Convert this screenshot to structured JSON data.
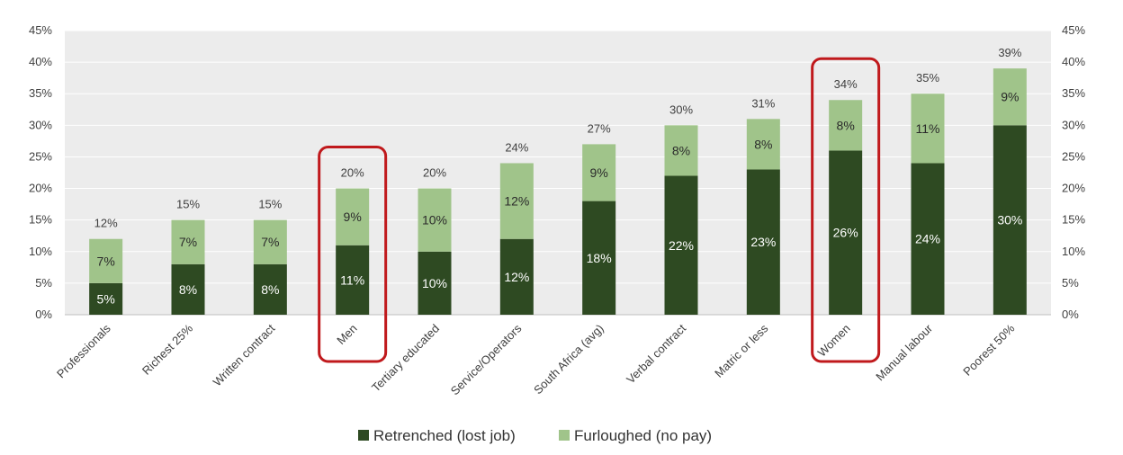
{
  "chart_data": {
    "type": "bar",
    "stacked": true,
    "categories": [
      "Professionals",
      "Richest 25%",
      "Written contract",
      "Men",
      "Tertiary educated",
      "Service/Operators",
      "South Africa (avg)",
      "Verbal contract",
      "Matric or less",
      "Women",
      "Manual labour",
      "Poorest 50%"
    ],
    "series": [
      {
        "name": "Retrenched (lost job)",
        "color": "#2e4a22",
        "values": [
          5,
          8,
          8,
          11,
          10,
          12,
          18,
          22,
          23,
          26,
          24,
          30
        ],
        "labels": [
          "5%",
          "8%",
          "8%",
          "11%",
          "10%",
          "12%",
          "18%",
          "22%",
          "23%",
          "26%",
          "24%",
          "30%"
        ]
      },
      {
        "name": "Furloughed (no pay)",
        "color": "#a0c48a",
        "values": [
          7,
          7,
          7,
          9,
          10,
          12,
          9,
          8,
          8,
          8,
          11,
          9
        ],
        "labels": [
          "7%",
          "7%",
          "7%",
          "9%",
          "10%",
          "12%",
          "9%",
          "8%",
          "8%",
          "8%",
          "11%",
          "9%"
        ]
      }
    ],
    "totals": [
      12,
      15,
      15,
      20,
      20,
      24,
      27,
      30,
      31,
      34,
      35,
      39
    ],
    "total_labels": [
      "12%",
      "15%",
      "15%",
      "20%",
      "20%",
      "24%",
      "27%",
      "30%",
      "31%",
      "34%",
      "35%",
      "39%"
    ],
    "ylim": [
      0,
      45
    ],
    "yticks": [
      "0%",
      "5%",
      "10%",
      "15%",
      "20%",
      "25%",
      "30%",
      "35%",
      "40%",
      "45%"
    ],
    "secondary_axis": true,
    "grid": true,
    "legend_position": "bottom",
    "highlighted": [
      "Men",
      "Women"
    ],
    "highlight_color": "#c0191c",
    "title": "",
    "xlabel": "",
    "ylabel": ""
  }
}
